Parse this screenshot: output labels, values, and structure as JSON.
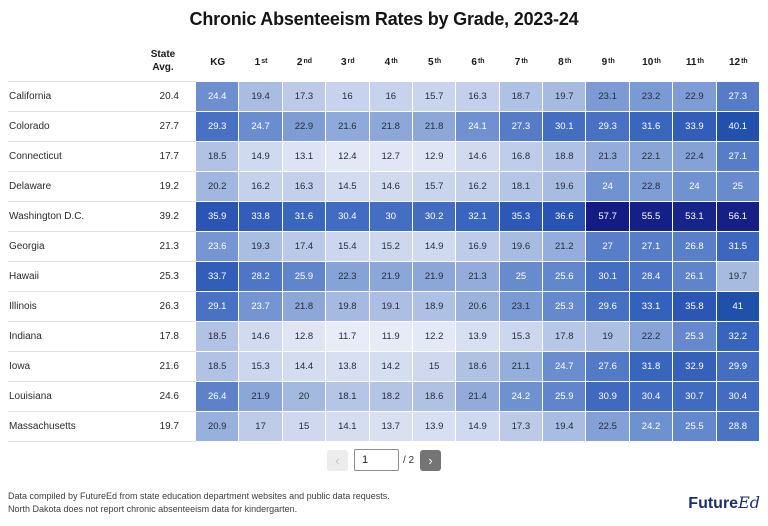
{
  "title": "Chronic Absenteeism Rates by Grade, 2023-24",
  "table": {
    "avg_header_line1": "State",
    "avg_header_line2": "Avg.",
    "grade_headers": [
      {
        "t": "KG",
        "s": ""
      },
      {
        "t": "1",
        "s": "st"
      },
      {
        "t": "2",
        "s": "nd"
      },
      {
        "t": "3",
        "s": "rd"
      },
      {
        "t": "4",
        "s": "th"
      },
      {
        "t": "5",
        "s": "th"
      },
      {
        "t": "6",
        "s": "th"
      },
      {
        "t": "7",
        "s": "th"
      },
      {
        "t": "8",
        "s": "th"
      },
      {
        "t": "9",
        "s": "th"
      },
      {
        "t": "10",
        "s": "th"
      },
      {
        "t": "11",
        "s": "th"
      },
      {
        "t": "12",
        "s": "th"
      }
    ]
  },
  "chart_data": {
    "type": "heatmap",
    "title": "Chronic Absenteeism Rates by Grade, 2023-24",
    "columns": [
      "KG",
      "1st",
      "2nd",
      "3rd",
      "4th",
      "5th",
      "6th",
      "7th",
      "8th",
      "9th",
      "10th",
      "11th",
      "12th"
    ],
    "row_avg_header": "State Avg.",
    "rows": [
      {
        "state": "California",
        "state_avg": 20.4,
        "values": [
          24.4,
          19.4,
          17.3,
          16,
          16,
          15.7,
          16.3,
          18.7,
          19.7,
          23.1,
          23.2,
          22.9,
          27.3
        ]
      },
      {
        "state": "Colorado",
        "state_avg": 27.7,
        "values": [
          29.3,
          24.7,
          22.9,
          21.6,
          21.8,
          21.8,
          24.1,
          27.3,
          30.1,
          29.3,
          31.6,
          33.9,
          40.1
        ]
      },
      {
        "state": "Connecticut",
        "state_avg": 17.7,
        "values": [
          18.5,
          14.9,
          13.1,
          12.4,
          12.7,
          12.9,
          14.6,
          16.8,
          18.8,
          21.3,
          22.1,
          22.4,
          27.1
        ]
      },
      {
        "state": "Delaware",
        "state_avg": 19.2,
        "values": [
          20.2,
          16.2,
          16.3,
          14.5,
          14.6,
          15.7,
          16.2,
          18.1,
          19.6,
          24,
          22.8,
          24,
          25
        ]
      },
      {
        "state": "Washington D.C.",
        "state_avg": 39.2,
        "values": [
          35.9,
          33.8,
          31.6,
          30.4,
          30,
          30.2,
          32.1,
          35.3,
          36.6,
          57.7,
          55.5,
          53.1,
          56.1
        ]
      },
      {
        "state": "Georgia",
        "state_avg": 21.3,
        "values": [
          23.6,
          19.3,
          17.4,
          15.4,
          15.2,
          14.9,
          16.9,
          19.6,
          21.2,
          27,
          27.1,
          26.8,
          31.5
        ]
      },
      {
        "state": "Hawaii",
        "state_avg": 25.3,
        "values": [
          33.7,
          28.2,
          25.9,
          22.3,
          21.9,
          21.9,
          21.3,
          25,
          25.6,
          30.1,
          28.4,
          26.1,
          19.7
        ]
      },
      {
        "state": "Illinois",
        "state_avg": 26.3,
        "values": [
          29.1,
          23.7,
          21.8,
          19.8,
          19.1,
          18.9,
          20.6,
          23.1,
          25.3,
          29.6,
          33.1,
          35.8,
          41
        ]
      },
      {
        "state": "Indiana",
        "state_avg": 17.8,
        "values": [
          18.5,
          14.6,
          12.8,
          11.7,
          11.9,
          12.2,
          13.9,
          15.3,
          17.8,
          19,
          22.2,
          25.3,
          32.2
        ]
      },
      {
        "state": "Iowa",
        "state_avg": 21.6,
        "values": [
          18.5,
          15.3,
          14.4,
          13.8,
          14.2,
          15,
          18.6,
          21.1,
          24.7,
          27.6,
          31.8,
          32.9,
          29.9
        ]
      },
      {
        "state": "Louisiana",
        "state_avg": 24.6,
        "values": [
          26.4,
          21.9,
          20,
          18.1,
          18.2,
          18.6,
          21.4,
          24.2,
          25.9,
          30.9,
          30.4,
          30.7,
          30.4
        ]
      },
      {
        "state": "Massachusetts",
        "state_avg": 19.7,
        "values": [
          20.9,
          17,
          15,
          14.1,
          13.7,
          13.9,
          14.9,
          17.3,
          19.4,
          22.5,
          24.2,
          25.5,
          28.8
        ]
      }
    ],
    "value_range": [
      11.7,
      57.7
    ],
    "legend": "none",
    "grid": "off"
  },
  "heat_scale": {
    "stops": [
      [
        11,
        "#edf0fa"
      ],
      [
        16,
        "#c7d2ec"
      ],
      [
        20,
        "#a4b9e0"
      ],
      [
        24,
        "#7092d1"
      ],
      [
        28,
        "#5077c6"
      ],
      [
        32,
        "#3865bd"
      ],
      [
        36,
        "#2b55b5"
      ],
      [
        41,
        "#1f50aa"
      ],
      [
        48,
        "#183093"
      ],
      [
        58,
        "#141b82"
      ]
    ],
    "white_text_threshold": 23.5,
    "dark_text_color": "#262d3a",
    "light_text_color": "#ffffff"
  },
  "pagination": {
    "prev_icon": "‹",
    "current": "1",
    "total_label": "/ 2",
    "next_icon": "›"
  },
  "footer": {
    "line1": "Data compiled by FutureEd from state education department websites and public data requests.",
    "line2": "North Dakota does not report chronic absenteeism data for kindergarten.",
    "logo_future": "Future",
    "logo_ed": "Ed"
  }
}
